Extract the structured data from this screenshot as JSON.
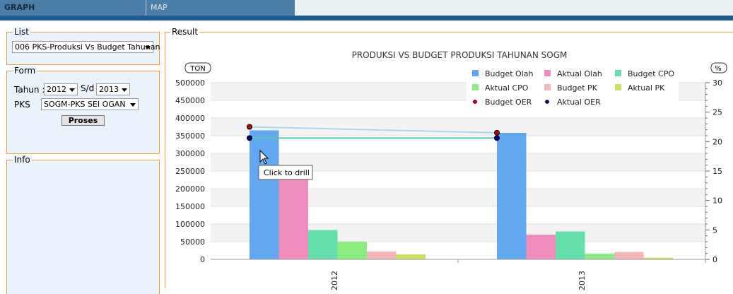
{
  "tabs": {
    "graph": "GRAPH",
    "map": "MAP"
  },
  "list": {
    "legend": "List",
    "report": "006 PKS-Produksi Vs Budget Tahunan"
  },
  "form": {
    "legend": "Form",
    "tahun_label": "Tahun :",
    "tahun_from": "2012",
    "sd_label": "S/d",
    "tahun_to": "2013",
    "pks_label": "PKS",
    "pks_value": "SOGM-PKS SEI OGAN",
    "proses_label": "Proses"
  },
  "info": {
    "legend": "Info"
  },
  "result": {
    "legend": "Result"
  },
  "tooltip": "Click to drill",
  "chart_data": {
    "type": "bar",
    "title": "PRODUKSI VS BUDGET PRODUKSI TAHUNAN SOGM",
    "ylabel": "TON",
    "y2label": "%",
    "categories": [
      "2012",
      "2013"
    ],
    "ylim": [
      0,
      500000
    ],
    "y2lim": [
      0,
      30
    ],
    "yticks": [
      "0",
      "50000",
      "100000",
      "150000",
      "200000",
      "250000",
      "300000",
      "350000",
      "400000",
      "450000",
      "500000"
    ],
    "y2ticks": [
      "0",
      "5",
      "10",
      "15",
      "20",
      "25",
      "30"
    ],
    "series": [
      {
        "name": "Budget Olah",
        "color": "#62a8f0",
        "values": [
          365000,
          358000
        ]
      },
      {
        "name": "Aktual Olah",
        "color": "#f08cbe",
        "values": [
          225000,
          70000
        ]
      },
      {
        "name": "Budget CPO",
        "color": "#66e0aa",
        "values": [
          83000,
          79000
        ]
      },
      {
        "name": "Aktual CPO",
        "color": "#8cee80",
        "values": [
          50000,
          16000
        ]
      },
      {
        "name": "Budget PK",
        "color": "#f4b6b6",
        "values": [
          22000,
          21000
        ]
      },
      {
        "name": "Aktual PK",
        "color": "#cde064",
        "values": [
          14000,
          5000
        ]
      }
    ],
    "line_series": [
      {
        "name": "Budget OER",
        "color": "#c00000",
        "line_color": "#a8d8f0",
        "values": [
          22.5,
          21.5
        ]
      },
      {
        "name": "Aktual OER",
        "color": "#000080",
        "line_color": "#5ac8a8",
        "values": [
          20.6,
          20.6
        ]
      }
    ],
    "legend_position": "top-right",
    "grid": true
  }
}
